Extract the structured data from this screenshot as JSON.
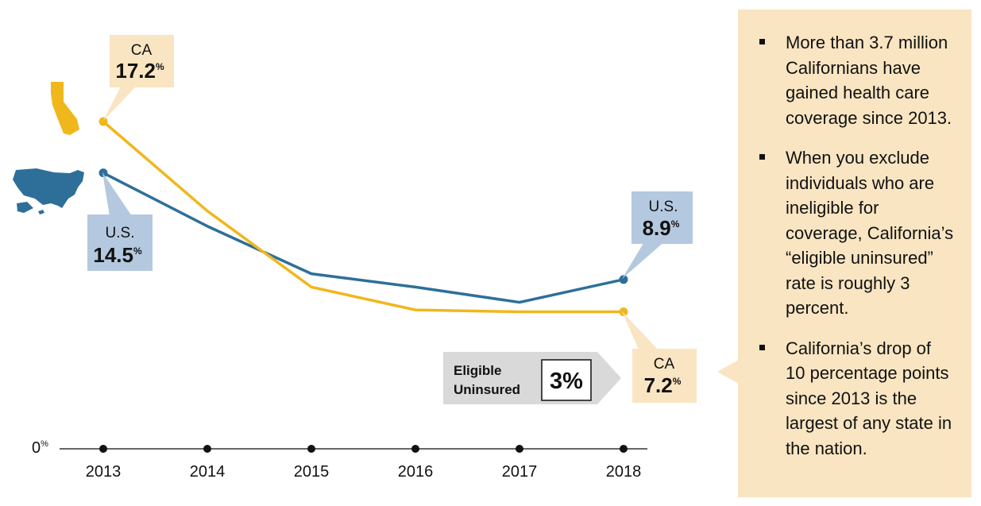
{
  "chart_data": {
    "type": "line",
    "x": [
      2013,
      2014,
      2015,
      2016,
      2017,
      2018
    ],
    "series": [
      {
        "name": "CA",
        "values": [
          17.2,
          12.5,
          8.5,
          7.3,
          7.2,
          7.2
        ]
      },
      {
        "name": "U.S.",
        "values": [
          14.5,
          11.7,
          9.2,
          8.5,
          7.7,
          8.9
        ]
      }
    ],
    "zero_label": "0",
    "zero_label_suffix": "%",
    "ylim": [
      0,
      17.2
    ],
    "grid": false,
    "colors": {
      "CA": "#f0b71d",
      "U.S.": "#2e6f9a"
    },
    "annotations": {
      "ca_start": {
        "name": "CA",
        "value": "17.2",
        "suffix": "%"
      },
      "us_start": {
        "name": "U.S.",
        "value": "14.5",
        "suffix": "%"
      },
      "us_end": {
        "name": "U.S.",
        "value": "8.9",
        "suffix": "%"
      },
      "ca_end": {
        "name": "CA",
        "value": "7.2",
        "suffix": "%"
      }
    },
    "eligible_uninsured": {
      "label_line1": "Eligible",
      "label_line2": "Uninsured",
      "value": "3%"
    }
  },
  "icons": {
    "california": "california-map-icon",
    "usa": "usa-map-icon"
  },
  "side_panel": {
    "bullets": [
      "More than 3.7 million Californians have gained health care coverage since 2013.",
      "When you exclude individuals who are ineligible for coverage, California’s “eligible uninsured” rate is roughly 3 percent.",
      "California’s drop of 10 percentage points since 2013 is the largest of any state in the nation."
    ]
  }
}
